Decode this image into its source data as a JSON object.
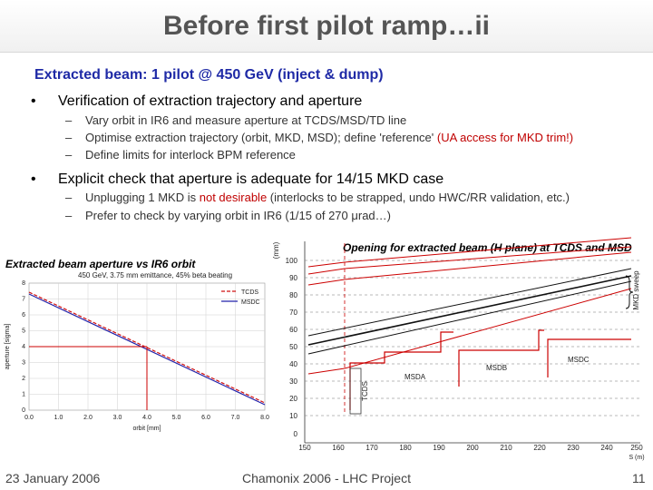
{
  "title": "Before first pilot ramp…ii",
  "subtitle": "Extracted beam: 1 pilot @ 450 GeV (inject & dump)",
  "bullets": [
    {
      "marker": "•",
      "text": "Verification of extraction trajectory and aperture",
      "subs": [
        {
          "dash": "–",
          "text": "Vary orbit in IR6 and measure aperture at TCDS/MSD/TD line"
        },
        {
          "dash": "–",
          "text": "Optimise extraction trajectory (orbit, MKD, MSD); define 'reference' ",
          "highlight": "(UA access for MKD trim!)"
        },
        {
          "dash": "–",
          "text": "Define limits for interlock BPM reference"
        }
      ]
    },
    {
      "marker": "•",
      "text": "Explicit check that aperture is adequate for 14/15 MKD case",
      "subs": [
        {
          "dash": "–",
          "text_before": "Unplugging 1 MKD is ",
          "highlight": "not desirable",
          "text_after": " (interlocks to be strapped, undo HWC/RR validation, etc.)"
        },
        {
          "dash": "–",
          "text": "Prefer to check by varying orbit in IR6 (1/15 of 270 μrad…)"
        }
      ]
    }
  ],
  "left_plot": {
    "caption": "Extracted beam aperture vs IR6 orbit",
    "header": "450 GeV, 3.75 mm emittance, 45% beta beating",
    "ylabel": "aperture [sigma]",
    "xlabel": "orbit [mm]",
    "yticks": [
      "0",
      "1",
      "2",
      "3",
      "4",
      "5",
      "6",
      "7",
      "8"
    ],
    "xticks": [
      "0.0",
      "1.0",
      "2.0",
      "3.0",
      "4.0",
      "5.0",
      "6.0",
      "7.0",
      "8.0"
    ],
    "legend": [
      "TCDS",
      "MSDC"
    ],
    "colors": {
      "tcds": "#d01010",
      "msdc": "#2222aa",
      "marker": "#cc0000"
    }
  },
  "right_plot": {
    "caption": "Opening for extracted beam (H plane) at TCDS and MSD",
    "ylabel_unit": "(mm)",
    "yticks": [
      "0",
      "10",
      "20",
      "30",
      "40",
      "50",
      "60",
      "70",
      "80",
      "90",
      "100"
    ],
    "xticks": [
      "150",
      "160",
      "170",
      "180",
      "190",
      "200",
      "210",
      "220",
      "230",
      "240",
      "250"
    ],
    "xlabel": "S (m)",
    "sweep_label": "MKD sweep",
    "labels": {
      "tcds": "TCDS",
      "msda": "MSDA",
      "msdb": "MSDB",
      "msdc": "MSDC"
    }
  },
  "footer": {
    "date": "23 January 2006",
    "center": "Chamonix 2006 - LHC Project",
    "page": "11"
  }
}
